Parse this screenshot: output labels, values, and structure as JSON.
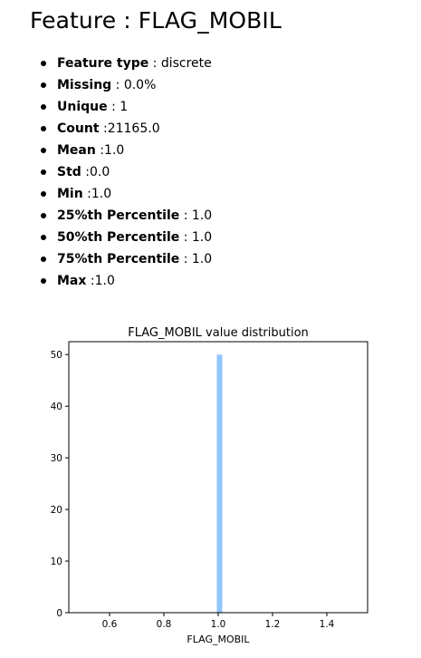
{
  "heading": "Feature : FLAG_MOBIL",
  "stats": [
    {
      "label": "Feature type",
      "sep": " : ",
      "value": "discrete"
    },
    {
      "label": "Missing",
      "sep": " : ",
      "value": "0.0%"
    },
    {
      "label": "Unique",
      "sep": " : ",
      "value": "1"
    },
    {
      "label": "Count",
      "sep": " :",
      "value": "21165.0"
    },
    {
      "label": "Mean",
      "sep": " :",
      "value": "1.0"
    },
    {
      "label": "Std",
      "sep": " :",
      "value": "0.0"
    },
    {
      "label": "Min",
      "sep": " :",
      "value": "1.0"
    },
    {
      "label": "25%th Percentile",
      "sep": " : ",
      "value": "1.0"
    },
    {
      "label": "50%th Percentile",
      "sep": " : ",
      "value": "1.0"
    },
    {
      "label": "75%th Percentile",
      "sep": " : ",
      "value": "1.0"
    },
    {
      "label": "Max",
      "sep": " :",
      "value": "1.0"
    }
  ],
  "chart_data": {
    "type": "bar",
    "title": "FLAG_MOBIL value distribution",
    "xlabel": "FLAG_MOBIL",
    "ylabel": "",
    "xlim": [
      0.45,
      1.55
    ],
    "ylim": [
      0,
      52.5
    ],
    "xticks": [
      "0.6",
      "0.8",
      "1.0",
      "1.2",
      "1.4"
    ],
    "yticks": [
      "0",
      "10",
      "20",
      "30",
      "40",
      "50"
    ],
    "bars": [
      {
        "x_start": 0.995,
        "x_end": 1.015,
        "value": 50
      }
    ],
    "bar_color": "#92c6ff",
    "grid": false,
    "legend": "none"
  }
}
